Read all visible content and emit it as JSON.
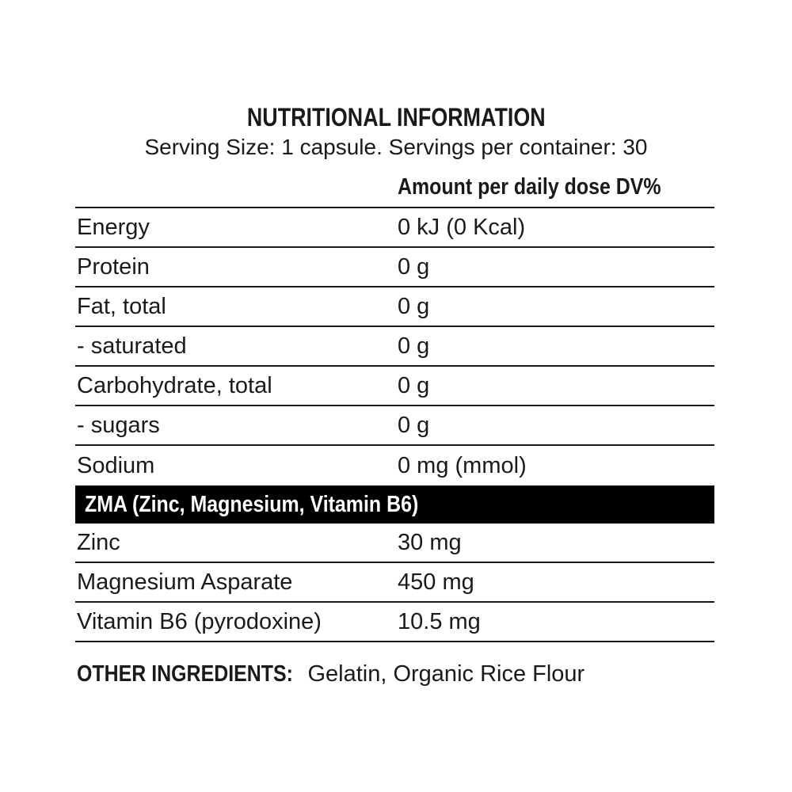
{
  "title": "NUTRITIONAL INFORMATION",
  "subtitle": "Serving Size: 1 capsule. Servings per container: 30",
  "column_header": "Amount per daily dose DV%",
  "nutrients": [
    {
      "name": "Energy",
      "value": "0 kJ (0 Kcal)"
    },
    {
      "name": "Protein",
      "value": "0 g"
    },
    {
      "name": "Fat, total",
      "value": "0 g"
    },
    {
      "name": "- saturated",
      "value": "0 g"
    },
    {
      "name": "Carbohydrate, total",
      "value": "0 g"
    },
    {
      "name": "- sugars",
      "value": "0 g"
    },
    {
      "name": "Sodium",
      "value": "0 mg (mmol)"
    }
  ],
  "section_header": "ZMA (Zinc, Magnesium, Vitamin B6)",
  "zma": [
    {
      "name": "Zinc",
      "value": "30 mg"
    },
    {
      "name": "Magnesium Asparate",
      "value": "450 mg"
    },
    {
      "name": "Vitamin B6 (pyrodoxine)",
      "value": "10.5 mg"
    }
  ],
  "other_ingredients": {
    "label": "OTHER INGREDIENTS:",
    "text": " Gelatin, Organic Rice Flour"
  }
}
